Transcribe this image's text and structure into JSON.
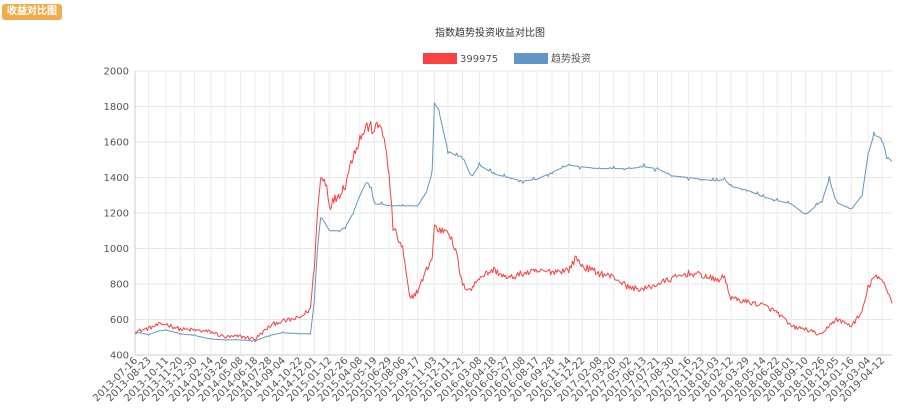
{
  "header": {
    "badge_label": "收益对比图"
  },
  "chart_data": {
    "type": "line",
    "title": "指数趋势投资收益对比图",
    "xlabel": "",
    "ylabel": "",
    "ylim": [
      400,
      2000
    ],
    "yticks": [
      400,
      600,
      800,
      1000,
      1200,
      1400,
      1600,
      1800,
      2000
    ],
    "grid": true,
    "legend_position": "top-center",
    "xlim": [
      "2013-07-16",
      "2019-05-10"
    ],
    "x_tick_labels": [
      "2013-07-16",
      "2013-08-23",
      "2013-10-11",
      "2013-11-20",
      "2013-12-30",
      "2014-02-14",
      "2014-03-26",
      "2014-05-08",
      "2014-06-18",
      "2014-07-28",
      "2014-09-04",
      "2014-10-22",
      "2014-12-01",
      "2015-01-12",
      "2015-02-26",
      "2015-04-08",
      "2015-05-19",
      "2015-06-29",
      "2015-08-06",
      "2015-09-17",
      "2015-11-03",
      "2015-12-11",
      "2016-01-21",
      "2016-03-08",
      "2016-04-18",
      "2016-05-27",
      "2016-07-08",
      "2016-08-17",
      "2016-09-28",
      "2016-11-14",
      "2016-12-22",
      "2017-02-08",
      "2017-03-20",
      "2017-05-02",
      "2017-06-13",
      "2017-07-21",
      "2017-08-30",
      "2017-10-16",
      "2017-11-23",
      "2018-01-03",
      "2018-02-12",
      "2018-03-29",
      "2018-05-14",
      "2018-06-22",
      "2018-08-01",
      "2018-09-10",
      "2018-10-26",
      "2018-12-05",
      "2019-01-16",
      "2019-03-04",
      "2019-04-12"
    ],
    "series": [
      {
        "name": "399975",
        "color": "#ff4040",
        "points": [
          [
            "2013-07-16",
            530
          ],
          [
            "2013-08-23",
            550
          ],
          [
            "2013-09-20",
            570
          ],
          [
            "2013-10-11",
            575
          ],
          [
            "2013-11-20",
            545
          ],
          [
            "2013-12-30",
            540
          ],
          [
            "2014-02-14",
            530
          ],
          [
            "2014-03-26",
            500
          ],
          [
            "2014-05-08",
            505
          ],
          [
            "2014-06-18",
            490
          ],
          [
            "2014-07-28",
            560
          ],
          [
            "2014-08-20",
            585
          ],
          [
            "2014-09-04",
            590
          ],
          [
            "2014-10-22",
            610
          ],
          [
            "2014-11-20",
            660
          ],
          [
            "2014-12-01",
            900
          ],
          [
            "2014-12-10",
            1200
          ],
          [
            "2014-12-19",
            1400
          ],
          [
            "2015-01-05",
            1370
          ],
          [
            "2015-01-12",
            1240
          ],
          [
            "2015-02-10",
            1310
          ],
          [
            "2015-02-26",
            1360
          ],
          [
            "2015-03-20",
            1530
          ],
          [
            "2015-04-08",
            1620
          ],
          [
            "2015-04-28",
            1690
          ],
          [
            "2015-05-19",
            1670
          ],
          [
            "2015-06-08",
            1700
          ],
          [
            "2015-06-29",
            1420
          ],
          [
            "2015-07-10",
            1120
          ],
          [
            "2015-07-27",
            1040
          ],
          [
            "2015-08-06",
            1000
          ],
          [
            "2015-08-26",
            715
          ],
          [
            "2015-09-17",
            760
          ],
          [
            "2015-10-12",
            880
          ],
          [
            "2015-10-28",
            950
          ],
          [
            "2015-11-03",
            1130
          ],
          [
            "2015-11-15",
            1100
          ],
          [
            "2015-12-11",
            1110
          ],
          [
            "2016-01-05",
            960
          ],
          [
            "2016-01-21",
            790
          ],
          [
            "2016-02-15",
            770
          ],
          [
            "2016-03-08",
            840
          ],
          [
            "2016-04-18",
            880
          ],
          [
            "2016-05-27",
            830
          ],
          [
            "2016-07-08",
            860
          ],
          [
            "2016-08-17",
            870
          ],
          [
            "2016-09-28",
            870
          ],
          [
            "2016-11-14",
            880
          ],
          [
            "2016-12-05",
            950
          ],
          [
            "2016-12-22",
            900
          ],
          [
            "2017-02-08",
            860
          ],
          [
            "2017-03-20",
            840
          ],
          [
            "2017-05-02",
            780
          ],
          [
            "2017-06-13",
            770
          ],
          [
            "2017-07-21",
            800
          ],
          [
            "2017-08-30",
            830
          ],
          [
            "2017-10-16",
            860
          ],
          [
            "2017-11-23",
            850
          ],
          [
            "2018-01-03",
            820
          ],
          [
            "2018-01-25",
            840
          ],
          [
            "2018-02-12",
            720
          ],
          [
            "2018-03-29",
            700
          ],
          [
            "2018-05-14",
            680
          ],
          [
            "2018-06-22",
            640
          ],
          [
            "2018-08-01",
            560
          ],
          [
            "2018-09-10",
            545
          ],
          [
            "2018-10-26",
            510
          ],
          [
            "2018-11-15",
            570
          ],
          [
            "2018-12-05",
            600
          ],
          [
            "2019-01-16",
            565
          ],
          [
            "2019-02-15",
            640
          ],
          [
            "2019-03-04",
            780
          ],
          [
            "2019-03-20",
            840
          ],
          [
            "2019-04-12",
            820
          ],
          [
            "2019-04-25",
            780
          ],
          [
            "2019-05-10",
            690
          ]
        ]
      },
      {
        "name": "趋势投资",
        "color": "#6196c6",
        "points": [
          [
            "2013-07-16",
            530
          ],
          [
            "2013-08-23",
            515
          ],
          [
            "2013-09-20",
            535
          ],
          [
            "2013-10-11",
            540
          ],
          [
            "2013-11-20",
            520
          ],
          [
            "2013-12-30",
            510
          ],
          [
            "2014-02-14",
            490
          ],
          [
            "2014-03-26",
            485
          ],
          [
            "2014-05-08",
            485
          ],
          [
            "2014-06-18",
            480
          ],
          [
            "2014-07-28",
            510
          ],
          [
            "2014-08-20",
            520
          ],
          [
            "2014-09-04",
            525
          ],
          [
            "2014-10-22",
            520
          ],
          [
            "2014-11-20",
            520
          ],
          [
            "2014-12-01",
            700
          ],
          [
            "2014-12-10",
            1000
          ],
          [
            "2014-12-19",
            1180
          ],
          [
            "2015-01-05",
            1130
          ],
          [
            "2015-01-12",
            1100
          ],
          [
            "2015-02-10",
            1100
          ],
          [
            "2015-02-26",
            1120
          ],
          [
            "2015-03-20",
            1200
          ],
          [
            "2015-04-08",
            1300
          ],
          [
            "2015-04-28",
            1380
          ],
          [
            "2015-05-10",
            1330
          ],
          [
            "2015-05-19",
            1250
          ],
          [
            "2015-06-08",
            1250
          ],
          [
            "2015-06-29",
            1240
          ],
          [
            "2015-07-27",
            1240
          ],
          [
            "2015-08-06",
            1240
          ],
          [
            "2015-08-26",
            1240
          ],
          [
            "2015-09-17",
            1240
          ],
          [
            "2015-10-12",
            1320
          ],
          [
            "2015-10-28",
            1430
          ],
          [
            "2015-11-03",
            1820
          ],
          [
            "2015-11-15",
            1780
          ],
          [
            "2015-12-11",
            1550
          ],
          [
            "2016-01-05",
            1520
          ],
          [
            "2016-01-21",
            1520
          ],
          [
            "2016-02-15",
            1400
          ],
          [
            "2016-03-08",
            1470
          ],
          [
            "2016-04-18",
            1420
          ],
          [
            "2016-05-27",
            1400
          ],
          [
            "2016-07-08",
            1380
          ],
          [
            "2016-08-17",
            1390
          ],
          [
            "2016-09-28",
            1430
          ],
          [
            "2016-11-14",
            1470
          ],
          [
            "2016-12-22",
            1460
          ],
          [
            "2017-02-08",
            1450
          ],
          [
            "2017-03-20",
            1450
          ],
          [
            "2017-05-02",
            1450
          ],
          [
            "2017-06-13",
            1460
          ],
          [
            "2017-07-21",
            1450
          ],
          [
            "2017-08-30",
            1410
          ],
          [
            "2017-10-16",
            1400
          ],
          [
            "2017-11-23",
            1390
          ],
          [
            "2018-01-03",
            1380
          ],
          [
            "2018-01-25",
            1390
          ],
          [
            "2018-02-12",
            1350
          ],
          [
            "2018-03-29",
            1330
          ],
          [
            "2018-05-14",
            1290
          ],
          [
            "2018-06-22",
            1270
          ],
          [
            "2018-08-01",
            1250
          ],
          [
            "2018-09-10",
            1190
          ],
          [
            "2018-10-26",
            1270
          ],
          [
            "2018-11-15",
            1390
          ],
          [
            "2018-12-05",
            1260
          ],
          [
            "2019-01-16",
            1220
          ],
          [
            "2019-02-15",
            1300
          ],
          [
            "2019-03-04",
            1530
          ],
          [
            "2019-03-20",
            1640
          ],
          [
            "2019-04-12",
            1620
          ],
          [
            "2019-04-25",
            1520
          ],
          [
            "2019-05-10",
            1490
          ]
        ]
      }
    ]
  }
}
